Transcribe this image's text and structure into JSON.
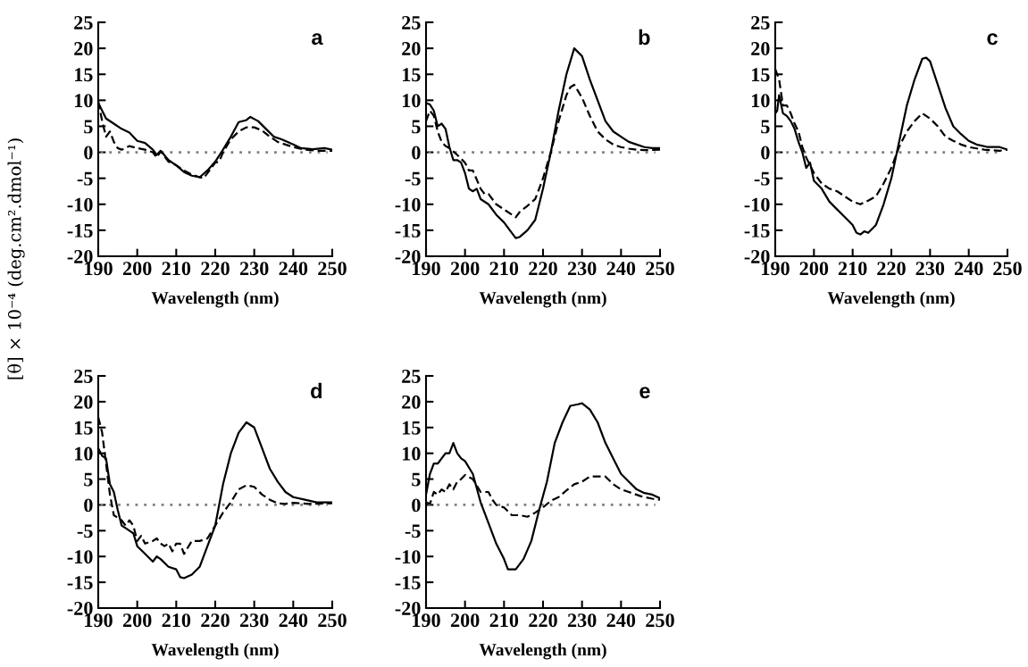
{
  "chart_data": [
    {
      "type": "line",
      "xlabel": "Wavelength (nm)",
      "ylabel": "[θ] × 10⁻⁴ (deg.cm².dmol⁻¹)",
      "annotations": [
        "a"
      ],
      "xlim": [
        190,
        250
      ],
      "ylim": [
        -20,
        25
      ],
      "xticks": [
        190,
        200,
        210,
        220,
        230,
        240,
        250
      ],
      "yticks": [
        -20,
        -15,
        -10,
        -5,
        0,
        5,
        10,
        15,
        20,
        25
      ],
      "grid": false,
      "legend": false,
      "ref_lines": [
        {
          "axis": "y",
          "value": 0,
          "color": "#808080",
          "line_style": "dotted"
        }
      ],
      "series": [
        {
          "color": "#000000",
          "line_style": "solid",
          "x": [
            190,
            191,
            192,
            194,
            196,
            198,
            200,
            202,
            204,
            205,
            206,
            208,
            210,
            212,
            214,
            216,
            218,
            220,
            222,
            224,
            226,
            228,
            229,
            231,
            233,
            235,
            237,
            240,
            242,
            245,
            248,
            250
          ],
          "values": [
            9.5,
            8,
            6.5,
            5.5,
            4.5,
            3.8,
            2.2,
            1.8,
            0.5,
            -0.5,
            0.3,
            -1.5,
            -2.5,
            -3.8,
            -4.5,
            -4.8,
            -3.5,
            -1.8,
            0.5,
            3,
            5.8,
            6.2,
            6.8,
            6,
            4.5,
            3,
            2.5,
            1.5,
            0.8,
            0.6,
            0.8,
            0.5
          ]
        },
        {
          "color": "#000000",
          "line_style": "dashed",
          "x": [
            190,
            191,
            192,
            193,
            194,
            195,
            196,
            198,
            200,
            202,
            204,
            205,
            206,
            208,
            210,
            212,
            214,
            216,
            217,
            218,
            220,
            221,
            222,
            224,
            226,
            228,
            230,
            232,
            234,
            236,
            238,
            240,
            243,
            246,
            250
          ],
          "values": [
            9.8,
            6,
            3,
            4,
            2,
            0.8,
            0.5,
            1.2,
            0.8,
            0.5,
            0,
            -1,
            0.2,
            -1.8,
            -2.5,
            -3.5,
            -4.3,
            -4.8,
            -5,
            -4,
            -2,
            -1.8,
            0,
            2.5,
            4,
            4.8,
            4.8,
            4.2,
            3,
            2,
            1.5,
            1,
            0.5,
            0.3,
            0.3
          ]
        }
      ]
    },
    {
      "type": "line",
      "xlabel": "Wavelength (nm)",
      "annotations": [
        "b"
      ],
      "xlim": [
        190,
        250
      ],
      "ylim": [
        -20,
        25
      ],
      "xticks": [
        190,
        200,
        210,
        220,
        230,
        240,
        250
      ],
      "yticks": [
        -20,
        -15,
        -10,
        -5,
        0,
        5,
        10,
        15,
        20,
        25
      ],
      "grid": false,
      "legend": false,
      "ref_lines": [
        {
          "axis": "y",
          "value": 0,
          "color": "#808080",
          "line_style": "dotted"
        }
      ],
      "series": [
        {
          "color": "#000000",
          "line_style": "solid",
          "x": [
            190,
            191,
            192,
            193,
            194,
            195,
            196,
            197,
            198,
            199,
            200,
            201,
            202,
            203,
            204,
            206,
            208,
            210,
            212,
            213,
            214,
            216,
            218,
            220,
            222,
            224,
            226,
            228,
            230,
            232,
            234,
            236,
            238,
            240,
            242,
            244,
            246,
            248,
            250
          ],
          "values": [
            9.5,
            9.2,
            8,
            5,
            5.5,
            4.5,
            1,
            -1.5,
            -1.5,
            -2,
            -4,
            -7,
            -7.5,
            -7,
            -9,
            -10,
            -12,
            -13.5,
            -15.5,
            -16.5,
            -16.3,
            -15,
            -13,
            -7,
            0,
            8,
            15,
            20,
            18.5,
            14,
            10,
            6,
            4,
            3,
            2,
            1.5,
            1,
            0.8,
            0.8
          ]
        },
        {
          "color": "#000000",
          "line_style": "dashed",
          "x": [
            190,
            191,
            192,
            193,
            194,
            195,
            196,
            198,
            200,
            201,
            202,
            204,
            205,
            206,
            208,
            210,
            212,
            213,
            214,
            216,
            218,
            220,
            222,
            224,
            226,
            227,
            228,
            230,
            232,
            234,
            236,
            238,
            240,
            242,
            244,
            246,
            250
          ],
          "values": [
            6,
            8,
            7,
            4,
            2,
            1.2,
            0.8,
            -0.5,
            -2,
            -3.5,
            -3.5,
            -7,
            -8,
            -8,
            -10,
            -11,
            -12,
            -12.5,
            -11.5,
            -10.3,
            -9,
            -5,
            0,
            6,
            11,
            12.5,
            13,
            10.5,
            7,
            4,
            2.5,
            1.5,
            1,
            0.7,
            0.5,
            0.4,
            0.5
          ]
        }
      ]
    },
    {
      "type": "line",
      "xlabel": "Wavelength (nm)",
      "annotations": [
        "c"
      ],
      "xlim": [
        190,
        250
      ],
      "ylim": [
        -20,
        25
      ],
      "xticks": [
        190,
        200,
        210,
        220,
        230,
        240,
        250
      ],
      "yticks": [
        -20,
        -15,
        -10,
        -5,
        0,
        5,
        10,
        15,
        20,
        25
      ],
      "grid": false,
      "legend": false,
      "ref_lines": [
        {
          "axis": "y",
          "value": 0,
          "color": "#808080",
          "line_style": "dotted"
        }
      ],
      "series": [
        {
          "color": "#000000",
          "line_style": "solid",
          "x": [
            190,
            190.5,
            191,
            192,
            193,
            194,
            195,
            196,
            197,
            198,
            199,
            200,
            202,
            204,
            206,
            208,
            210,
            211,
            212,
            213,
            214,
            216,
            218,
            220,
            222,
            224,
            226,
            228,
            229,
            230,
            232,
            234,
            236,
            238,
            240,
            242,
            245,
            248,
            250
          ],
          "values": [
            7.5,
            8,
            11,
            7.5,
            7,
            6,
            4.5,
            2,
            0,
            -3,
            -2,
            -5.5,
            -7,
            -9.5,
            -11,
            -12.5,
            -14,
            -15.5,
            -15.8,
            -15.2,
            -15.5,
            -14,
            -10,
            -5,
            2,
            9,
            14,
            18,
            18.2,
            17.5,
            13,
            8.5,
            5,
            3.5,
            2.2,
            1.5,
            1,
            1,
            0.5
          ]
        },
        {
          "color": "#000000",
          "line_style": "dashed",
          "x": [
            190,
            191,
            192,
            193,
            194,
            195,
            196,
            197,
            198,
            200,
            202,
            204,
            206,
            208,
            210,
            212,
            214,
            216,
            218,
            220,
            222,
            224,
            226,
            228,
            230,
            232,
            234,
            236,
            238,
            240,
            244,
            248,
            250
          ],
          "values": [
            16,
            14,
            9,
            9,
            7.5,
            5.5,
            4,
            1,
            -1,
            -4,
            -6,
            -7,
            -7.5,
            -8.5,
            -9.5,
            -10,
            -9.3,
            -8.5,
            -6,
            -3,
            1,
            4,
            6,
            7.5,
            6.5,
            5,
            3,
            2.2,
            1.5,
            1,
            0.5,
            0.3,
            0.5
          ]
        }
      ]
    },
    {
      "type": "line",
      "xlabel": "Wavelength (nm)",
      "annotations": [
        "d"
      ],
      "xlim": [
        190,
        250
      ],
      "ylim": [
        -20,
        25
      ],
      "xticks": [
        190,
        200,
        210,
        220,
        230,
        240,
        250
      ],
      "yticks": [
        -20,
        -15,
        -10,
        -5,
        0,
        5,
        10,
        15,
        20,
        25
      ],
      "grid": false,
      "legend": false,
      "ref_lines": [
        {
          "axis": "y",
          "value": 0,
          "color": "#808080",
          "line_style": "dotted"
        }
      ],
      "series": [
        {
          "color": "#000000",
          "line_style": "solid",
          "x": [
            190,
            191,
            192,
            193,
            194,
            195,
            196,
            197,
            198,
            199,
            200,
            202,
            204,
            205,
            206,
            208,
            210,
            211,
            212,
            214,
            216,
            218,
            220,
            222,
            224,
            226,
            228,
            230,
            232,
            234,
            236,
            238,
            240,
            243,
            246,
            250
          ],
          "values": [
            11,
            9.5,
            9,
            4,
            2.5,
            -1,
            -4,
            -4.5,
            -5,
            -5.5,
            -8,
            -9.5,
            -11,
            -10,
            -10.5,
            -12,
            -12.5,
            -14,
            -14.2,
            -13.5,
            -12,
            -8,
            -4,
            4,
            10,
            14,
            16,
            15,
            11,
            7,
            4.5,
            2.5,
            1.5,
            1,
            0.5,
            0.5
          ]
        },
        {
          "color": "#000000",
          "line_style": "dashed",
          "x": [
            190,
            191,
            192,
            193,
            194,
            195,
            196,
            197,
            198,
            199,
            200,
            201,
            202,
            204,
            205,
            206,
            207,
            208,
            209,
            210,
            211,
            212,
            214,
            216,
            218,
            220,
            222,
            224,
            226,
            228,
            230,
            232,
            234,
            236,
            238,
            240,
            244,
            250
          ],
          "values": [
            17,
            14,
            8,
            2,
            -2,
            -2.5,
            -3,
            -4,
            -3,
            -4,
            -7,
            -6,
            -7.5,
            -7,
            -6.5,
            -7.5,
            -8,
            -7.5,
            -9,
            -7.5,
            -7.5,
            -9.5,
            -7,
            -7,
            -6.5,
            -4,
            -1.5,
            0.5,
            3,
            3.8,
            3.5,
            2,
            1,
            0.3,
            0.2,
            0.4,
            0.2,
            0.3
          ]
        }
      ]
    },
    {
      "type": "line",
      "xlabel": "Wavelength (nm)",
      "annotations": [
        "e"
      ],
      "xlim": [
        190,
        250
      ],
      "ylim": [
        -20,
        25
      ],
      "xticks": [
        190,
        200,
        210,
        220,
        230,
        240,
        250
      ],
      "yticks": [
        -20,
        -15,
        -10,
        -5,
        0,
        5,
        10,
        15,
        20,
        25
      ],
      "grid": false,
      "legend": false,
      "ref_lines": [
        {
          "axis": "y",
          "value": 0,
          "color": "#808080",
          "line_style": "dotted"
        }
      ],
      "series": [
        {
          "color": "#000000",
          "line_style": "solid",
          "x": [
            190,
            191,
            192,
            193,
            194,
            195,
            196,
            197,
            198,
            199,
            200,
            202,
            204,
            206,
            208,
            210,
            211,
            213,
            215,
            217,
            219,
            221,
            223,
            225,
            227,
            229,
            230,
            232,
            234,
            236,
            238,
            240,
            242,
            244,
            246,
            248,
            250
          ],
          "values": [
            2,
            6,
            8,
            8,
            9,
            10,
            10,
            12,
            10,
            9,
            8.5,
            6,
            0.5,
            -3.5,
            -7.5,
            -10.5,
            -12.5,
            -12.5,
            -10.5,
            -7,
            -1,
            4.5,
            12,
            16,
            19.2,
            19.5,
            19.7,
            18.5,
            16,
            12,
            9,
            6,
            4.5,
            3,
            2.3,
            2,
            1.3
          ]
        },
        {
          "color": "#000000",
          "line_style": "dashed",
          "x": [
            190,
            191,
            192,
            193,
            194,
            195,
            196,
            197,
            198,
            199,
            200,
            202,
            204,
            206,
            207,
            208,
            210,
            212,
            214,
            216,
            218,
            220,
            222,
            224,
            226,
            228,
            230,
            232,
            234,
            236,
            238,
            240,
            242,
            245,
            248,
            250
          ],
          "values": [
            0.5,
            0.2,
            2.5,
            2,
            3,
            2.5,
            4,
            3,
            4.5,
            5,
            5.8,
            5,
            2.5,
            2.5,
            1,
            0,
            -0.5,
            -2,
            -2,
            -2.3,
            -1.5,
            -0.5,
            0.8,
            1.5,
            2.8,
            4,
            4.5,
            5.5,
            5.5,
            5.5,
            4,
            3,
            2.5,
            1.7,
            1.2,
            1
          ]
        }
      ]
    }
  ]
}
